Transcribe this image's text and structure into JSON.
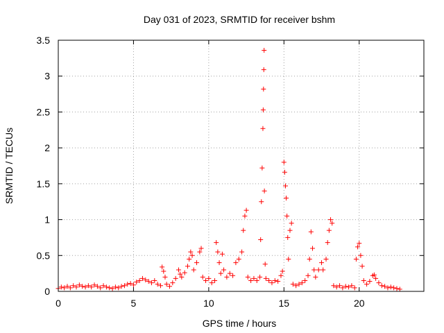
{
  "chart_data": {
    "type": "scatter",
    "title": "Day 031 of 2023, SRMTID for receiver bshm",
    "xlabel": "GPS time / hours",
    "ylabel": "SRMTID / TECUs",
    "xlim": [
      0,
      24.3
    ],
    "ylim": [
      0,
      3.5
    ],
    "x_ticks": [
      0,
      5,
      10,
      15,
      20
    ],
    "x_tick_labels": [
      "0",
      "5",
      "10",
      "15",
      "20"
    ],
    "y_ticks": [
      0,
      0.5,
      1,
      1.5,
      2,
      2.5,
      3,
      3.5
    ],
    "y_tick_labels": [
      "0",
      "0.5",
      "1",
      "1.5",
      "2",
      "2.5",
      "3",
      "3.5"
    ],
    "grid": true,
    "marker": "+",
    "marker_color": "#ff0000",
    "series": [
      {
        "name": "SRMTID",
        "points": [
          [
            0.0,
            0.04
          ],
          [
            0.2,
            0.06
          ],
          [
            0.4,
            0.05
          ],
          [
            0.6,
            0.07
          ],
          [
            0.8,
            0.05
          ],
          [
            1.0,
            0.08
          ],
          [
            1.2,
            0.06
          ],
          [
            1.4,
            0.09
          ],
          [
            1.6,
            0.07
          ],
          [
            1.8,
            0.06
          ],
          [
            2.0,
            0.08
          ],
          [
            2.2,
            0.06
          ],
          [
            2.4,
            0.09
          ],
          [
            2.6,
            0.07
          ],
          [
            2.8,
            0.05
          ],
          [
            3.0,
            0.08
          ],
          [
            3.2,
            0.06
          ],
          [
            3.4,
            0.05
          ],
          [
            3.6,
            0.04
          ],
          [
            3.8,
            0.06
          ],
          [
            4.0,
            0.05
          ],
          [
            4.2,
            0.07
          ],
          [
            4.4,
            0.08
          ],
          [
            4.6,
            0.1
          ],
          [
            4.8,
            0.11
          ],
          [
            5.0,
            0.09
          ],
          [
            5.2,
            0.13
          ],
          [
            5.4,
            0.15
          ],
          [
            5.6,
            0.18
          ],
          [
            5.8,
            0.16
          ],
          [
            6.0,
            0.14
          ],
          [
            6.2,
            0.12
          ],
          [
            6.4,
            0.15
          ],
          [
            6.6,
            0.1
          ],
          [
            6.8,
            0.08
          ],
          [
            6.9,
            0.34
          ],
          [
            7.0,
            0.28
          ],
          [
            7.1,
            0.2
          ],
          [
            7.2,
            0.1
          ],
          [
            7.4,
            0.07
          ],
          [
            7.6,
            0.12
          ],
          [
            7.8,
            0.18
          ],
          [
            8.0,
            0.3
          ],
          [
            8.1,
            0.24
          ],
          [
            8.2,
            0.2
          ],
          [
            8.4,
            0.26
          ],
          [
            8.6,
            0.35
          ],
          [
            8.7,
            0.45
          ],
          [
            8.8,
            0.55
          ],
          [
            8.9,
            0.5
          ],
          [
            9.0,
            0.3
          ],
          [
            9.2,
            0.4
          ],
          [
            9.4,
            0.55
          ],
          [
            9.5,
            0.6
          ],
          [
            9.6,
            0.2
          ],
          [
            9.8,
            0.15
          ],
          [
            10.0,
            0.18
          ],
          [
            10.2,
            0.12
          ],
          [
            10.4,
            0.15
          ],
          [
            10.5,
            0.68
          ],
          [
            10.6,
            0.55
          ],
          [
            10.7,
            0.4
          ],
          [
            10.8,
            0.25
          ],
          [
            10.9,
            0.52
          ],
          [
            11.0,
            0.3
          ],
          [
            11.2,
            0.2
          ],
          [
            11.4,
            0.25
          ],
          [
            11.6,
            0.22
          ],
          [
            11.8,
            0.4
          ],
          [
            12.0,
            0.45
          ],
          [
            12.2,
            0.55
          ],
          [
            12.3,
            0.85
          ],
          [
            12.4,
            1.05
          ],
          [
            12.5,
            1.13
          ],
          [
            12.6,
            0.2
          ],
          [
            12.8,
            0.15
          ],
          [
            13.0,
            0.18
          ],
          [
            13.2,
            0.15
          ],
          [
            13.4,
            0.2
          ],
          [
            13.45,
            0.72
          ],
          [
            13.5,
            1.25
          ],
          [
            13.55,
            1.72
          ],
          [
            13.6,
            2.27
          ],
          [
            13.62,
            2.53
          ],
          [
            13.64,
            2.82
          ],
          [
            13.66,
            3.09
          ],
          [
            13.68,
            3.36
          ],
          [
            13.7,
            1.4
          ],
          [
            13.75,
            0.38
          ],
          [
            13.8,
            0.18
          ],
          [
            14.0,
            0.15
          ],
          [
            14.2,
            0.12
          ],
          [
            14.4,
            0.15
          ],
          [
            14.6,
            0.14
          ],
          [
            14.8,
            0.22
          ],
          [
            14.9,
            0.28
          ],
          [
            15.0,
            1.8
          ],
          [
            15.05,
            1.66
          ],
          [
            15.1,
            1.47
          ],
          [
            15.15,
            1.3
          ],
          [
            15.2,
            1.05
          ],
          [
            15.25,
            0.75
          ],
          [
            15.3,
            0.45
          ],
          [
            15.4,
            0.85
          ],
          [
            15.5,
            0.95
          ],
          [
            15.6,
            0.1
          ],
          [
            15.8,
            0.08
          ],
          [
            16.0,
            0.1
          ],
          [
            16.2,
            0.12
          ],
          [
            16.4,
            0.15
          ],
          [
            16.6,
            0.22
          ],
          [
            16.7,
            0.45
          ],
          [
            16.8,
            0.83
          ],
          [
            16.9,
            0.6
          ],
          [
            17.0,
            0.3
          ],
          [
            17.1,
            0.2
          ],
          [
            17.3,
            0.3
          ],
          [
            17.5,
            0.4
          ],
          [
            17.6,
            0.3
          ],
          [
            17.8,
            0.45
          ],
          [
            17.9,
            0.68
          ],
          [
            18.0,
            0.85
          ],
          [
            18.1,
            1.0
          ],
          [
            18.2,
            0.95
          ],
          [
            18.3,
            0.08
          ],
          [
            18.5,
            0.06
          ],
          [
            18.7,
            0.08
          ],
          [
            18.9,
            0.05
          ],
          [
            19.1,
            0.07
          ],
          [
            19.3,
            0.06
          ],
          [
            19.5,
            0.08
          ],
          [
            19.7,
            0.05
          ],
          [
            19.8,
            0.45
          ],
          [
            19.9,
            0.62
          ],
          [
            20.0,
            0.67
          ],
          [
            20.1,
            0.5
          ],
          [
            20.2,
            0.35
          ],
          [
            20.3,
            0.15
          ],
          [
            20.5,
            0.1
          ],
          [
            20.7,
            0.14
          ],
          [
            20.9,
            0.22
          ],
          [
            21.0,
            0.23
          ],
          [
            21.1,
            0.18
          ],
          [
            21.3,
            0.12
          ],
          [
            21.5,
            0.08
          ],
          [
            21.7,
            0.07
          ],
          [
            21.9,
            0.05
          ],
          [
            22.1,
            0.06
          ],
          [
            22.3,
            0.05
          ],
          [
            22.5,
            0.04
          ],
          [
            22.7,
            0.03
          ]
        ]
      }
    ]
  }
}
